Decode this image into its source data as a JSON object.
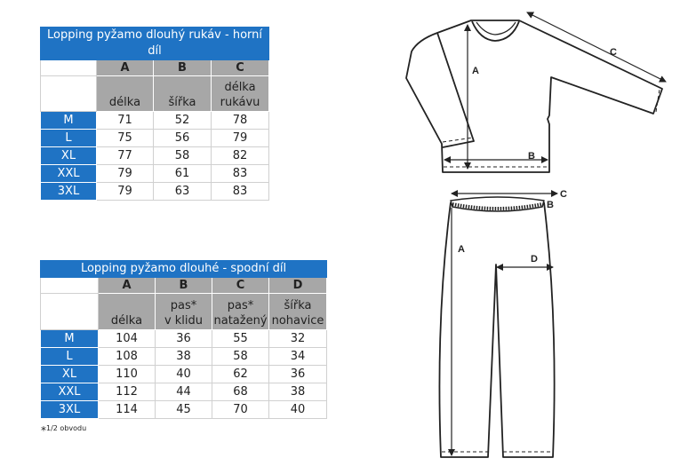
{
  "top_table": {
    "title": "Lopping pyžamo dlouhý rukáv - horní díl",
    "columns": [
      {
        "letter": "A",
        "label": "délka"
      },
      {
        "letter": "B",
        "label": "šířka"
      },
      {
        "letter": "C",
        "label_line1": "délka",
        "label_line2": "rukávu"
      }
    ],
    "rows": [
      {
        "size": "M",
        "values": [
          "71",
          "52",
          "78"
        ]
      },
      {
        "size": "L",
        "values": [
          "75",
          "56",
          "79"
        ]
      },
      {
        "size": "XL",
        "values": [
          "77",
          "58",
          "82"
        ]
      },
      {
        "size": "XXL",
        "values": [
          "79",
          "61",
          "83"
        ]
      },
      {
        "size": "3XL",
        "values": [
          "79",
          "63",
          "83"
        ]
      }
    ]
  },
  "bottom_table": {
    "title": "Lopping pyžamo dlouhé - spodní díl",
    "columns": [
      {
        "letter": "A",
        "label": "délka"
      },
      {
        "letter": "B",
        "label_line1": "pas*",
        "label_line2": "v klidu"
      },
      {
        "letter": "C",
        "label_line1": "pas*",
        "label_line2": "natažený"
      },
      {
        "letter": "D",
        "label_line1": "šířka",
        "label_line2": "nohavice"
      }
    ],
    "rows": [
      {
        "size": "M",
        "values": [
          "104",
          "36",
          "55",
          "32"
        ]
      },
      {
        "size": "L",
        "values": [
          "108",
          "38",
          "58",
          "34"
        ]
      },
      {
        "size": "XL",
        "values": [
          "110",
          "40",
          "62",
          "36"
        ]
      },
      {
        "size": "XXL",
        "values": [
          "112",
          "44",
          "68",
          "38"
        ]
      },
      {
        "size": "3XL",
        "values": [
          "114",
          "45",
          "70",
          "40"
        ]
      }
    ],
    "footnote_mark": "*",
    "footnote": "1/2 obvodu"
  },
  "diagram": {
    "shirt_labels": {
      "a": "A",
      "b": "B",
      "c": "C"
    },
    "pants_labels": {
      "a": "A",
      "b": "B",
      "c": "C",
      "d": "D"
    }
  },
  "colors": {
    "header_blue": "#1f73c4",
    "header_gray": "#a7a7a7"
  }
}
